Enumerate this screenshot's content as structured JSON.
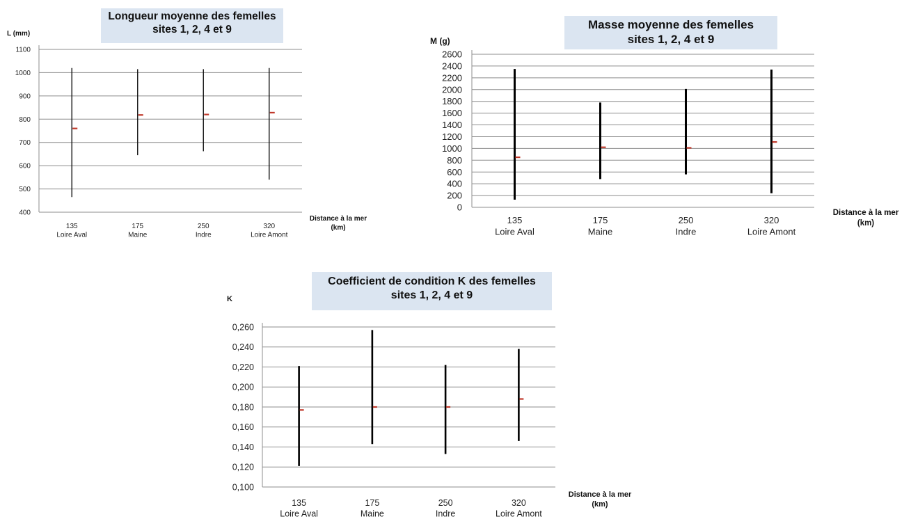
{
  "chart_data": [
    {
      "id": "longueur",
      "type": "range",
      "title": [
        "Longueur moyenne des femelles",
        "sites 1, 2, 4 et 9"
      ],
      "ylabel": "L (mm)",
      "xlabel": [
        "Distance à la mer",
        "(km)"
      ],
      "ylim": [
        400,
        1100
      ],
      "yticks": [
        "400",
        "500",
        "600",
        "700",
        "800",
        "900",
        "1000",
        "1100"
      ],
      "ytick_values": [
        400,
        500,
        600,
        700,
        800,
        900,
        1000,
        1100
      ],
      "categories": [
        {
          "km": "135",
          "site": "Loire Aval"
        },
        {
          "km": "175",
          "site": "Maine"
        },
        {
          "km": "250",
          "site": "Indre"
        },
        {
          "km": "320",
          "site": "Loire Amont"
        }
      ],
      "min": [
        465,
        645,
        662,
        540
      ],
      "max": [
        1020,
        1015,
        1015,
        1020
      ],
      "mean": [
        760,
        818,
        820,
        828
      ],
      "grid": true,
      "colors": {
        "range": "#111111",
        "mean": "#c0392b",
        "grid": "#8c8c8c",
        "title_bg": "#dbe5f1"
      }
    },
    {
      "id": "masse",
      "type": "range",
      "title": [
        "Masse moyenne des femelles",
        "sites 1, 2, 4 et 9"
      ],
      "ylabel": "M (g)",
      "xlabel": [
        "Distance à la mer",
        "(km)"
      ],
      "ylim": [
        0,
        2600
      ],
      "yticks": [
        "0",
        "200",
        "400",
        "600",
        "800",
        "1000",
        "1200",
        "1400",
        "1600",
        "1800",
        "2000",
        "2200",
        "2400",
        "2600"
      ],
      "ytick_values": [
        0,
        200,
        400,
        600,
        800,
        1000,
        1200,
        1400,
        1600,
        1800,
        2000,
        2200,
        2400,
        2600
      ],
      "categories": [
        {
          "km": "135",
          "site": "Loire Aval"
        },
        {
          "km": "175",
          "site": "Maine"
        },
        {
          "km": "250",
          "site": "Indre"
        },
        {
          "km": "320",
          "site": "Loire Amont"
        }
      ],
      "min": [
        130,
        480,
        560,
        240
      ],
      "max": [
        2350,
        1780,
        2010,
        2340
      ],
      "mean": [
        850,
        1020,
        1010,
        1110
      ],
      "grid": true,
      "colors": {
        "range": "#000000",
        "mean": "#c0392b",
        "grid": "#8c8c8c",
        "title_bg": "#dbe5f1"
      }
    },
    {
      "id": "coefficient",
      "type": "range",
      "title": [
        "Coefficient de condition K des femelles",
        "sites 1, 2, 4 et 9"
      ],
      "ylabel": "K",
      "xlabel": [
        "Distance à la mer",
        "(km)"
      ],
      "ylim": [
        0.1,
        0.26
      ],
      "yticks": [
        "0,100",
        "0,120",
        "0,140",
        "0,160",
        "0,180",
        "0,200",
        "0,220",
        "0,240",
        "0,260"
      ],
      "ytick_values": [
        0.1,
        0.12,
        0.14,
        0.16,
        0.18,
        0.2,
        0.22,
        0.24,
        0.26
      ],
      "categories": [
        {
          "km": "135",
          "site": "Loire Aval"
        },
        {
          "km": "175",
          "site": "Maine"
        },
        {
          "km": "250",
          "site": "Indre"
        },
        {
          "km": "320",
          "site": "Loire Amont"
        }
      ],
      "min": [
        0.121,
        0.143,
        0.133,
        0.146
      ],
      "max": [
        0.221,
        0.257,
        0.222,
        0.238
      ],
      "mean": [
        0.177,
        0.18,
        0.18,
        0.188
      ],
      "grid": true,
      "colors": {
        "range": "#000000",
        "mean": "#c0392b",
        "grid": "#8c8c8c",
        "title_bg": "#dbe5f1"
      }
    }
  ]
}
